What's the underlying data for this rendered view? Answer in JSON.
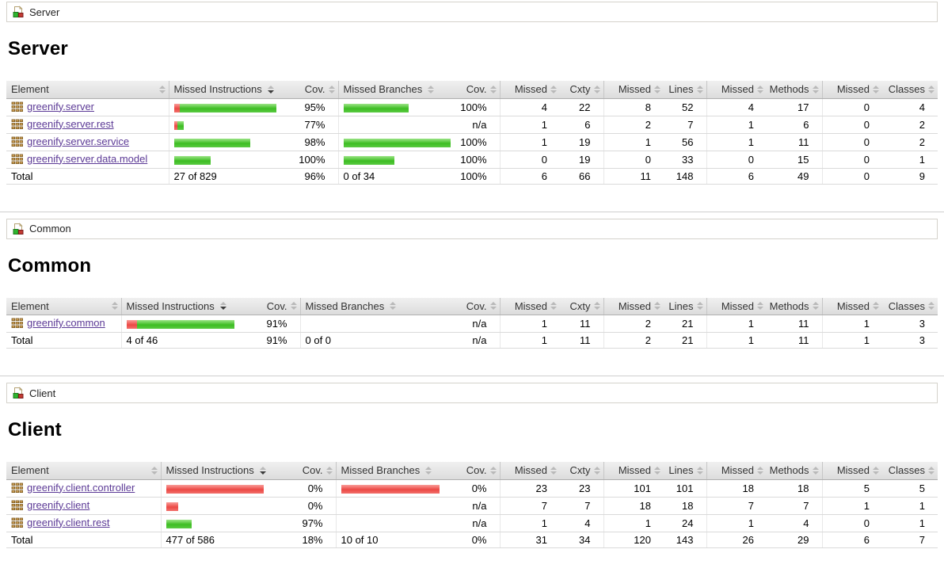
{
  "colors": {
    "bar_green": "#3dbd23",
    "bar_red": "#ec4844",
    "link_purple": "#5c3a96",
    "group_icon_green": "#2fb52f",
    "group_icon_red": "#c23a32",
    "package_icon_brown": "#cf9f57",
    "header_sorted_arrow": "#3c3c3c"
  },
  "columns": [
    {
      "label": "Element",
      "type": "name",
      "sortable": true
    },
    {
      "label": "Missed Instructions",
      "type": "bar",
      "sortable": true,
      "sorted": "desc"
    },
    {
      "label": "Cov.",
      "type": "ctr2",
      "sortable": true
    },
    {
      "label": "Missed Branches",
      "type": "bar",
      "sortable": true
    },
    {
      "label": "Cov.",
      "type": "ctr2",
      "sortable": true
    },
    {
      "label": "Missed",
      "type": "ctr1",
      "sortable": true
    },
    {
      "label": "Cxty",
      "type": "ctr2",
      "sortable": true
    },
    {
      "label": "Missed",
      "type": "ctr1",
      "sortable": true
    },
    {
      "label": "Lines",
      "type": "ctr2",
      "sortable": true
    },
    {
      "label": "Missed",
      "type": "ctr1",
      "sortable": true
    },
    {
      "label": "Methods",
      "type": "ctr2",
      "sortable": true
    },
    {
      "label": "Missed",
      "type": "ctr1",
      "sortable": true
    },
    {
      "label": "Classes",
      "type": "ctr2",
      "sortable": true
    }
  ],
  "sections": [
    {
      "breadcrumb": "Server",
      "heading": "Server",
      "rows": [
        {
          "element": "greenify.server",
          "is_link": true,
          "instr": {
            "red": 7,
            "green": 122
          },
          "instr_cov": "95%",
          "branch": {
            "green": 82
          },
          "branch_cov": "100%",
          "vals": [
            "4",
            "22",
            "8",
            "52",
            "4",
            "17",
            "0",
            "4"
          ]
        },
        {
          "element": "greenify.server.rest",
          "is_link": true,
          "instr": {
            "red": 4,
            "green": 8
          },
          "instr_cov": "77%",
          "branch": null,
          "branch_cov": "n/a",
          "vals": [
            "1",
            "6",
            "2",
            "7",
            "1",
            "6",
            "0",
            "2"
          ]
        },
        {
          "element": "greenify.server.service",
          "is_link": true,
          "instr": {
            "green": 96
          },
          "instr_cov": "98%",
          "branch": {
            "green": 135
          },
          "branch_cov": "100%",
          "vals": [
            "1",
            "19",
            "1",
            "56",
            "1",
            "11",
            "0",
            "2"
          ]
        },
        {
          "element": "greenify.server.data.model",
          "is_link": true,
          "instr": {
            "green": 46
          },
          "instr_cov": "100%",
          "branch": {
            "green": 64
          },
          "branch_cov": "100%",
          "vals": [
            "0",
            "19",
            "0",
            "33",
            "0",
            "15",
            "0",
            "1"
          ]
        }
      ],
      "total": {
        "element": "Total",
        "is_link": false,
        "instr": {
          "text": "27 of 829"
        },
        "instr_cov": "96%",
        "branch": {
          "text": "0 of 34"
        },
        "branch_cov": "100%",
        "vals": [
          "6",
          "66",
          "11",
          "148",
          "6",
          "49",
          "0",
          "9"
        ]
      }
    },
    {
      "breadcrumb": "Common",
      "heading": "Common",
      "rows": [
        {
          "element": "greenify.common",
          "is_link": true,
          "instr": {
            "red": 13,
            "green": 123
          },
          "instr_cov": "91%",
          "branch": null,
          "branch_cov": "n/a",
          "vals": [
            "1",
            "11",
            "2",
            "21",
            "1",
            "11",
            "1",
            "3"
          ]
        }
      ],
      "total": {
        "element": "Total",
        "is_link": false,
        "instr": {
          "text": "4 of 46"
        },
        "instr_cov": "91%",
        "branch": {
          "text": "0 of 0"
        },
        "branch_cov": "n/a",
        "vals": [
          "1",
          "11",
          "2",
          "21",
          "1",
          "11",
          "1",
          "3"
        ]
      }
    },
    {
      "breadcrumb": "Client",
      "heading": "Client",
      "rows": [
        {
          "element": "greenify.client.controller",
          "is_link": true,
          "instr": {
            "red": 123
          },
          "instr_cov": "0%",
          "branch": {
            "red": 124
          },
          "branch_cov": "0%",
          "vals": [
            "23",
            "23",
            "101",
            "101",
            "18",
            "18",
            "5",
            "5"
          ]
        },
        {
          "element": "greenify.client",
          "is_link": true,
          "instr": {
            "red": 15
          },
          "instr_cov": "0%",
          "branch": null,
          "branch_cov": "n/a",
          "vals": [
            "7",
            "7",
            "18",
            "18",
            "7",
            "7",
            "1",
            "1"
          ]
        },
        {
          "element": "greenify.client.rest",
          "is_link": true,
          "instr": {
            "green": 32
          },
          "instr_cov": "97%",
          "branch": null,
          "branch_cov": "n/a",
          "vals": [
            "1",
            "4",
            "1",
            "24",
            "1",
            "4",
            "0",
            "1"
          ]
        }
      ],
      "total": {
        "element": "Total",
        "is_link": false,
        "instr": {
          "text": "477 of 586"
        },
        "instr_cov": "18%",
        "branch": {
          "text": "10 of 10"
        },
        "branch_cov": "0%",
        "vals": [
          "31",
          "34",
          "120",
          "143",
          "26",
          "29",
          "6",
          "7"
        ]
      }
    }
  ]
}
